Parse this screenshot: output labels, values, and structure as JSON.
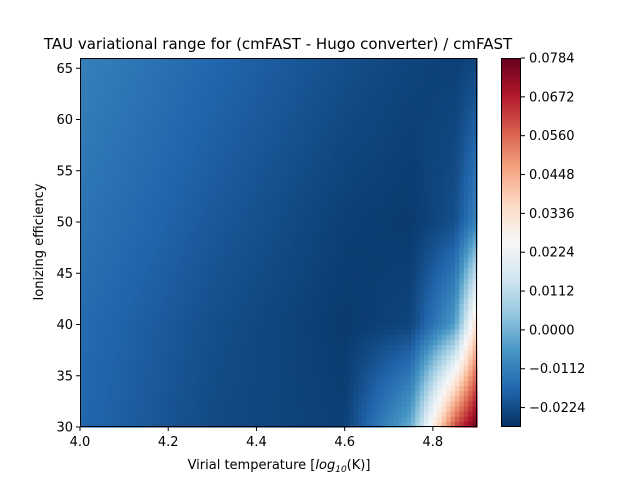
{
  "chart_data": {
    "type": "heatmap",
    "title": "TAU variational range for (cmFAST - Hugo converter) / cmFAST",
    "xlabel_prefix": "Virial temperature [",
    "xlabel_math": "log",
    "xlabel_sub": "10",
    "xlabel_suffix": "(K)]",
    "ylabel": "Ionizing efficiency",
    "xlim": [
      4.0,
      4.9
    ],
    "ylim": [
      30,
      66
    ],
    "xticks": [
      "4.0",
      "4.2",
      "4.4",
      "4.6",
      "4.8"
    ],
    "yticks": [
      "30",
      "35",
      "40",
      "45",
      "50",
      "55",
      "60",
      "65"
    ],
    "colormap": "RdBu (reversed, low=red, high=blue)",
    "color_range": [
      -0.028,
      0.0784
    ],
    "colorbar_ticks": [
      "−0.0224",
      "−0.0112",
      "0.0000",
      "0.0112",
      "0.0224",
      "0.0336",
      "0.0448",
      "0.0560",
      "0.0672",
      "0.0784"
    ],
    "grid": false,
    "field_description": "Values range from about -0.012 at low virial temperature and high efficiency, to about -0.026 along a curved valley, rising sharply to about 0.08 at virial temperature 4.9 and efficiency 30.",
    "field_samples": {
      "x": [
        4.0,
        4.3,
        4.6,
        4.75,
        4.85,
        4.9
      ],
      "y": [
        30,
        40,
        50,
        66
      ],
      "z": [
        [
          -0.017,
          -0.023,
          -0.025,
          -0.002,
          0.06,
          0.078
        ],
        [
          -0.016,
          -0.022,
          -0.026,
          -0.024,
          -0.005,
          0.035
        ],
        [
          -0.014,
          -0.02,
          -0.025,
          -0.026,
          -0.022,
          -0.01
        ],
        [
          -0.011,
          -0.017,
          -0.022,
          -0.024,
          -0.025,
          -0.024
        ]
      ]
    }
  }
}
